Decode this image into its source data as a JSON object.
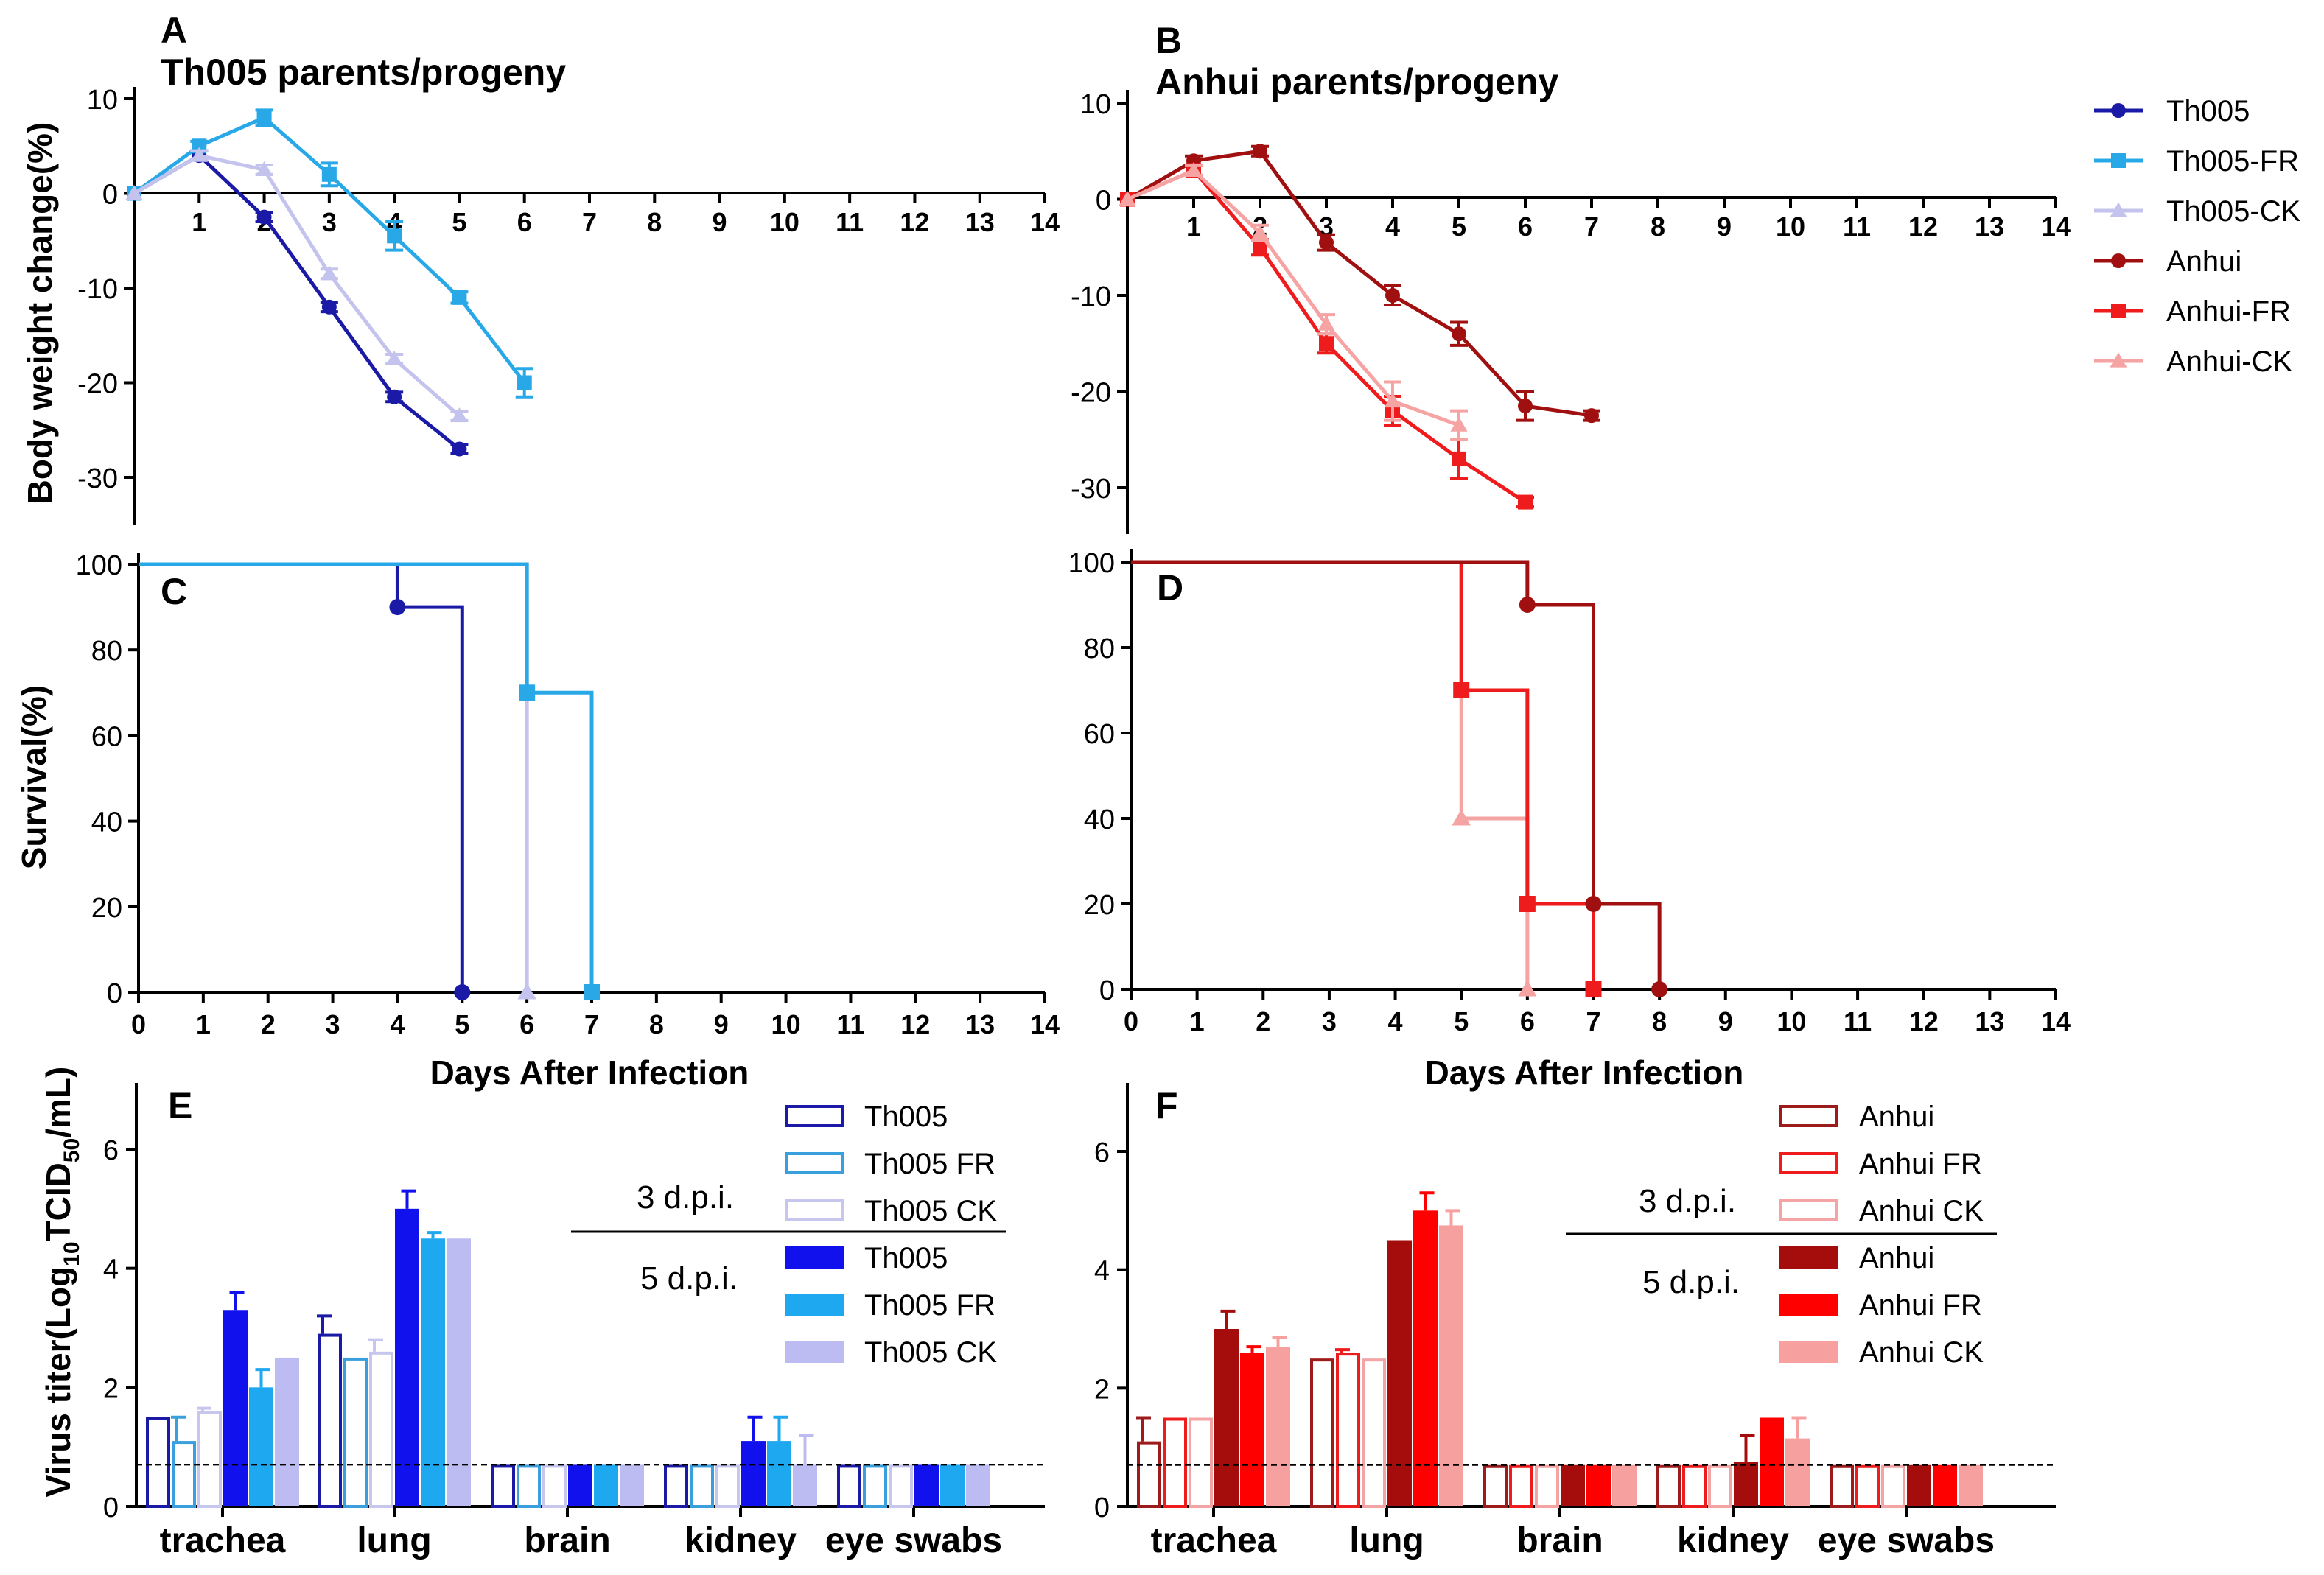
{
  "labels": {
    "panel_a": "A",
    "panel_b": "B",
    "panel_c": "C",
    "panel_d": "D",
    "panel_e": "E",
    "panel_f": "F",
    "title_a": "Th005  parents/progeny",
    "title_b": "Anhui  parents/progeny",
    "ylabel_weight": "Body weight change(%)",
    "ylabel_survival": "Survival(%)",
    "ylabel_titer_main": "Virus titer(Log",
    "ylabel_titer_sub1": "10",
    "ylabel_titer_mid": "TCID",
    "ylabel_titer_sub2": "50",
    "ylabel_titer_end": "/mL)",
    "xlabel_days": "Days After Infection",
    "dpi3": "3 d.p.i.",
    "dpi5": "5 d.p.i."
  },
  "colors": {
    "Th005": "#1a1aa6",
    "Th005-FR": "#29a8e8",
    "Th005-CK": "#c3c3ee",
    "Anhui": "#a01010",
    "Anhui-FR": "#ee1c1c",
    "Anhui-CK": "#f5a3a3",
    "bar_th005_3": "#1a1aa6",
    "bar_th005fr_3": "#3aa0dd",
    "bar_th005ck_3": "#c6c6ee",
    "bar_th005_5": "#1111ee",
    "bar_th005fr_5": "#1ea8f0",
    "bar_th005ck_5": "#bcbcf2",
    "bar_anhui_3": "#9e1b1b",
    "bar_anhuifr_3": "#ee1c1c",
    "bar_anhuick_3": "#f4a4a4",
    "bar_anhui_5": "#a50d0d",
    "bar_anhuifr_5": "#ff0000",
    "bar_anhuick_5": "#f7a0a0"
  },
  "legend_top": [
    {
      "name": "Th005",
      "color_key": "Th005",
      "marker": "circle"
    },
    {
      "name": "Th005-FR",
      "color_key": "Th005-FR",
      "marker": "square"
    },
    {
      "name": "Th005-CK",
      "color_key": "Th005-CK",
      "marker": "triangle"
    },
    {
      "name": "Anhui",
      "color_key": "Anhui",
      "marker": "circle"
    },
    {
      "name": "Anhui-FR",
      "color_key": "Anhui-FR",
      "marker": "square"
    },
    {
      "name": "Anhui-CK",
      "color_key": "Anhui-CK",
      "marker": "triangle"
    }
  ],
  "legend_e": [
    {
      "name": "Th005",
      "color_key": "bar_th005_3",
      "filled": false
    },
    {
      "name": "Th005 FR",
      "color_key": "bar_th005fr_3",
      "filled": false
    },
    {
      "name": "Th005 CK",
      "color_key": "bar_th005ck_3",
      "filled": false
    },
    {
      "name": "Th005",
      "color_key": "bar_th005_5",
      "filled": true
    },
    {
      "name": "Th005 FR",
      "color_key": "bar_th005fr_5",
      "filled": true
    },
    {
      "name": "Th005 CK",
      "color_key": "bar_th005ck_5",
      "filled": true
    }
  ],
  "legend_f": [
    {
      "name": "Anhui",
      "color_key": "bar_anhui_3",
      "filled": false
    },
    {
      "name": "Anhui FR",
      "color_key": "bar_anhuifr_3",
      "filled": false
    },
    {
      "name": "Anhui CK",
      "color_key": "bar_anhuick_3",
      "filled": false
    },
    {
      "name": "Anhui",
      "color_key": "bar_anhui_5",
      "filled": true
    },
    {
      "name": "Anhui FR",
      "color_key": "bar_anhuifr_5",
      "filled": true
    },
    {
      "name": "Anhui CK",
      "color_key": "bar_anhuick_5",
      "filled": true
    }
  ],
  "chart_data": [
    {
      "id": "A",
      "type": "line",
      "title": "Th005  parents/progeny",
      "ylabel": "Body weight change(%)",
      "xlim": [
        0,
        14
      ],
      "ylim": [
        -35,
        10
      ],
      "xticks": [
        "1",
        "2",
        "3",
        "4",
        "5",
        "6",
        "7",
        "8",
        "9",
        "10",
        "11",
        "12",
        "13",
        "14"
      ],
      "yticks": [
        "10",
        "0",
        "-10",
        "-20",
        "-30"
      ],
      "series": [
        {
          "name": "Th005",
          "color_key": "Th005",
          "marker": "circle",
          "x": [
            0,
            1,
            2,
            3,
            4,
            5
          ],
          "y": [
            0,
            4,
            -2.5,
            -12,
            -21.5,
            -27
          ],
          "err": [
            0,
            0.5,
            0.5,
            0.5,
            0.5,
            0.5
          ]
        },
        {
          "name": "Th005-FR",
          "color_key": "Th005-FR",
          "marker": "square",
          "x": [
            0,
            1,
            2,
            3,
            4,
            5,
            6
          ],
          "y": [
            0,
            5,
            8,
            2,
            -4.5,
            -11,
            -20
          ],
          "err": [
            0,
            0.5,
            0.8,
            1.2,
            1.5,
            0.6,
            1.5
          ]
        },
        {
          "name": "Th005-CK",
          "color_key": "Th005-CK",
          "marker": "triangle",
          "x": [
            0,
            1,
            2,
            3,
            4,
            5
          ],
          "y": [
            0,
            4,
            2.5,
            -8.5,
            -17.5,
            -23.5
          ],
          "err": [
            0,
            0.5,
            0.5,
            0.5,
            0.5,
            0.5
          ]
        }
      ]
    },
    {
      "id": "B",
      "type": "line",
      "title": "Anhui  parents/progeny",
      "xlim": [
        0,
        14
      ],
      "ylim": [
        -35,
        10
      ],
      "xticks": [
        "1",
        "2",
        "3",
        "4",
        "5",
        "6",
        "7",
        "8",
        "9",
        "10",
        "11",
        "12",
        "13",
        "14"
      ],
      "yticks": [
        "10",
        "0",
        "-10",
        "-20",
        "-30"
      ],
      "series": [
        {
          "name": "Anhui",
          "color_key": "Anhui",
          "marker": "circle",
          "x": [
            0,
            1,
            2,
            3,
            4,
            5,
            6,
            7
          ],
          "y": [
            0,
            4,
            5,
            -4.5,
            -10,
            -14,
            -21.5,
            -22.5
          ],
          "err": [
            0,
            0.5,
            0.5,
            0.8,
            1,
            1.2,
            1.5,
            0.5
          ]
        },
        {
          "name": "Anhui-FR",
          "color_key": "Anhui-FR",
          "marker": "square",
          "x": [
            0,
            1,
            2,
            3,
            4,
            5,
            6
          ],
          "y": [
            0,
            3,
            -5,
            -15,
            -22,
            -27,
            -31.5
          ],
          "err": [
            0,
            0.5,
            0.8,
            1,
            1.5,
            2,
            0.5
          ]
        },
        {
          "name": "Anhui-CK",
          "color_key": "Anhui-CK",
          "marker": "triangle",
          "x": [
            0,
            1,
            2,
            3,
            4,
            5
          ],
          "y": [
            0,
            3,
            -3.5,
            -13,
            -21,
            -23.5
          ],
          "err": [
            0,
            0.5,
            0.8,
            1,
            2,
            1.5
          ]
        }
      ]
    },
    {
      "id": "C",
      "type": "line",
      "step": true,
      "ylabel": "Survival(%)",
      "xlabel": "Days After Infection",
      "xlim": [
        0,
        14
      ],
      "ylim": [
        0,
        100
      ],
      "xticks": [
        "0",
        "1",
        "2",
        "3",
        "4",
        "5",
        "6",
        "7",
        "8",
        "9",
        "10",
        "11",
        "12",
        "13",
        "14"
      ],
      "yticks": [
        "0",
        "20",
        "40",
        "60",
        "80",
        "100"
      ],
      "series": [
        {
          "name": "Th005-CK",
          "color_key": "Th005-CK",
          "x": [
            0,
            6
          ],
          "y": [
            100,
            0
          ],
          "markers": [
            [
              6,
              0,
              "triangle"
            ]
          ]
        },
        {
          "name": "Th005",
          "color_key": "Th005",
          "x": [
            0,
            4,
            5
          ],
          "y": [
            100,
            90,
            0
          ],
          "markers": [
            [
              4,
              90,
              "circle"
            ],
            [
              5,
              0,
              "circle"
            ]
          ]
        },
        {
          "name": "Th005-FR",
          "color_key": "Th005-FR",
          "x": [
            0,
            6,
            7
          ],
          "y": [
            100,
            70,
            0
          ],
          "markers": [
            [
              6,
              70,
              "square"
            ],
            [
              7,
              0,
              "square"
            ]
          ]
        }
      ]
    },
    {
      "id": "D",
      "type": "line",
      "step": true,
      "xlabel": "Days After Infection",
      "xlim": [
        0,
        14
      ],
      "ylim": [
        0,
        100
      ],
      "xticks": [
        "0",
        "1",
        "2",
        "3",
        "4",
        "5",
        "6",
        "7",
        "8",
        "9",
        "10",
        "11",
        "12",
        "13",
        "14"
      ],
      "yticks": [
        "0",
        "20",
        "40",
        "60",
        "80",
        "100"
      ],
      "series": [
        {
          "name": "Anhui-CK",
          "color_key": "Anhui-CK",
          "x": [
            0,
            5,
            6
          ],
          "y": [
            100,
            40,
            0
          ],
          "markers": [
            [
              5,
              40,
              "triangle"
            ],
            [
              6,
              0,
              "triangle"
            ]
          ]
        },
        {
          "name": "Anhui-FR",
          "color_key": "Anhui-FR",
          "x": [
            0,
            5,
            6,
            7
          ],
          "y": [
            100,
            70,
            20,
            0
          ],
          "markers": [
            [
              5,
              70,
              "square"
            ],
            [
              6,
              20,
              "square"
            ],
            [
              7,
              0,
              "square"
            ]
          ]
        },
        {
          "name": "Anhui",
          "color_key": "Anhui",
          "x": [
            0,
            6,
            7,
            8
          ],
          "y": [
            100,
            90,
            20,
            0
          ],
          "markers": [
            [
              6,
              90,
              "circle"
            ],
            [
              7,
              20,
              "circle"
            ],
            [
              8,
              0,
              "circle"
            ]
          ]
        }
      ]
    },
    {
      "id": "E",
      "type": "bar",
      "categories": [
        "trachea",
        "lung",
        "brain",
        "kidney",
        "eye swabs"
      ],
      "ylim": [
        0,
        7
      ],
      "yticks": [
        "0",
        "2",
        "4",
        "6"
      ],
      "detection_limit": 0.7,
      "series": [
        {
          "name": "Th005",
          "dpi": 3,
          "filled": false,
          "color_key": "bar_th005_3",
          "values": [
            1.5,
            2.9,
            0.7,
            0.7,
            0.7
          ],
          "err": [
            0,
            0.3,
            0,
            0,
            0
          ]
        },
        {
          "name": "Th005 FR",
          "dpi": 3,
          "filled": false,
          "color_key": "bar_th005fr_3",
          "values": [
            1.1,
            2.5,
            0.7,
            0.7,
            0.7
          ],
          "err": [
            0.4,
            0,
            0,
            0,
            0
          ]
        },
        {
          "name": "Th005 CK",
          "dpi": 3,
          "filled": false,
          "color_key": "bar_th005ck_3",
          "values": [
            1.6,
            2.6,
            0.7,
            0.7,
            0.7
          ],
          "err": [
            0.05,
            0.2,
            0,
            0,
            0
          ]
        },
        {
          "name": "Th005",
          "dpi": 5,
          "filled": true,
          "color_key": "bar_th005_5",
          "values": [
            3.3,
            5.0,
            0.7,
            1.1,
            0.7
          ],
          "err": [
            0.3,
            0.3,
            0,
            0.4,
            0
          ]
        },
        {
          "name": "Th005 FR",
          "dpi": 5,
          "filled": true,
          "color_key": "bar_th005fr_5",
          "values": [
            2.0,
            4.5,
            0.7,
            1.1,
            0.7
          ],
          "err": [
            0.3,
            0.1,
            0,
            0.4,
            0
          ]
        },
        {
          "name": "Th005 CK",
          "dpi": 5,
          "filled": true,
          "color_key": "bar_th005ck_5",
          "values": [
            2.5,
            4.5,
            0.7,
            0.7,
            0.7
          ],
          "err": [
            0,
            0,
            0,
            0.5,
            0
          ]
        }
      ]
    },
    {
      "id": "F",
      "type": "bar",
      "categories": [
        "trachea",
        "lung",
        "brain",
        "kidney",
        "eye swabs"
      ],
      "ylim": [
        0,
        7
      ],
      "yticks": [
        "0",
        "2",
        "4",
        "6"
      ],
      "detection_limit": 0.7,
      "series": [
        {
          "name": "Anhui",
          "dpi": 3,
          "filled": false,
          "color_key": "bar_anhui_3",
          "values": [
            1.1,
            2.5,
            0.7,
            0.7,
            0.7
          ],
          "err": [
            0.4,
            0,
            0,
            0,
            0
          ]
        },
        {
          "name": "Anhui FR",
          "dpi": 3,
          "filled": false,
          "color_key": "bar_anhuifr_3",
          "values": [
            1.5,
            2.6,
            0.7,
            0.7,
            0.7
          ],
          "err": [
            0,
            0.05,
            0,
            0,
            0
          ]
        },
        {
          "name": "Anhui CK",
          "dpi": 3,
          "filled": false,
          "color_key": "bar_anhuick_3",
          "values": [
            1.5,
            2.5,
            0.7,
            0.7,
            0.7
          ],
          "err": [
            0,
            0,
            0,
            0,
            0
          ]
        },
        {
          "name": "Anhui",
          "dpi": 5,
          "filled": true,
          "color_key": "bar_anhui_5",
          "values": [
            3.0,
            4.5,
            0.7,
            0.75,
            0.7
          ],
          "err": [
            0.3,
            0,
            0,
            0.45,
            0
          ]
        },
        {
          "name": "Anhui FR",
          "dpi": 5,
          "filled": true,
          "color_key": "bar_anhuifr_5",
          "values": [
            2.6,
            5.0,
            0.7,
            1.5,
            0.7
          ],
          "err": [
            0.1,
            0.3,
            0,
            0,
            0
          ]
        },
        {
          "name": "Anhui CK",
          "dpi": 5,
          "filled": true,
          "color_key": "bar_anhuick_5",
          "values": [
            2.7,
            4.75,
            0.7,
            1.15,
            0.7
          ],
          "err": [
            0.15,
            0.25,
            0,
            0.35,
            0
          ]
        }
      ]
    }
  ]
}
